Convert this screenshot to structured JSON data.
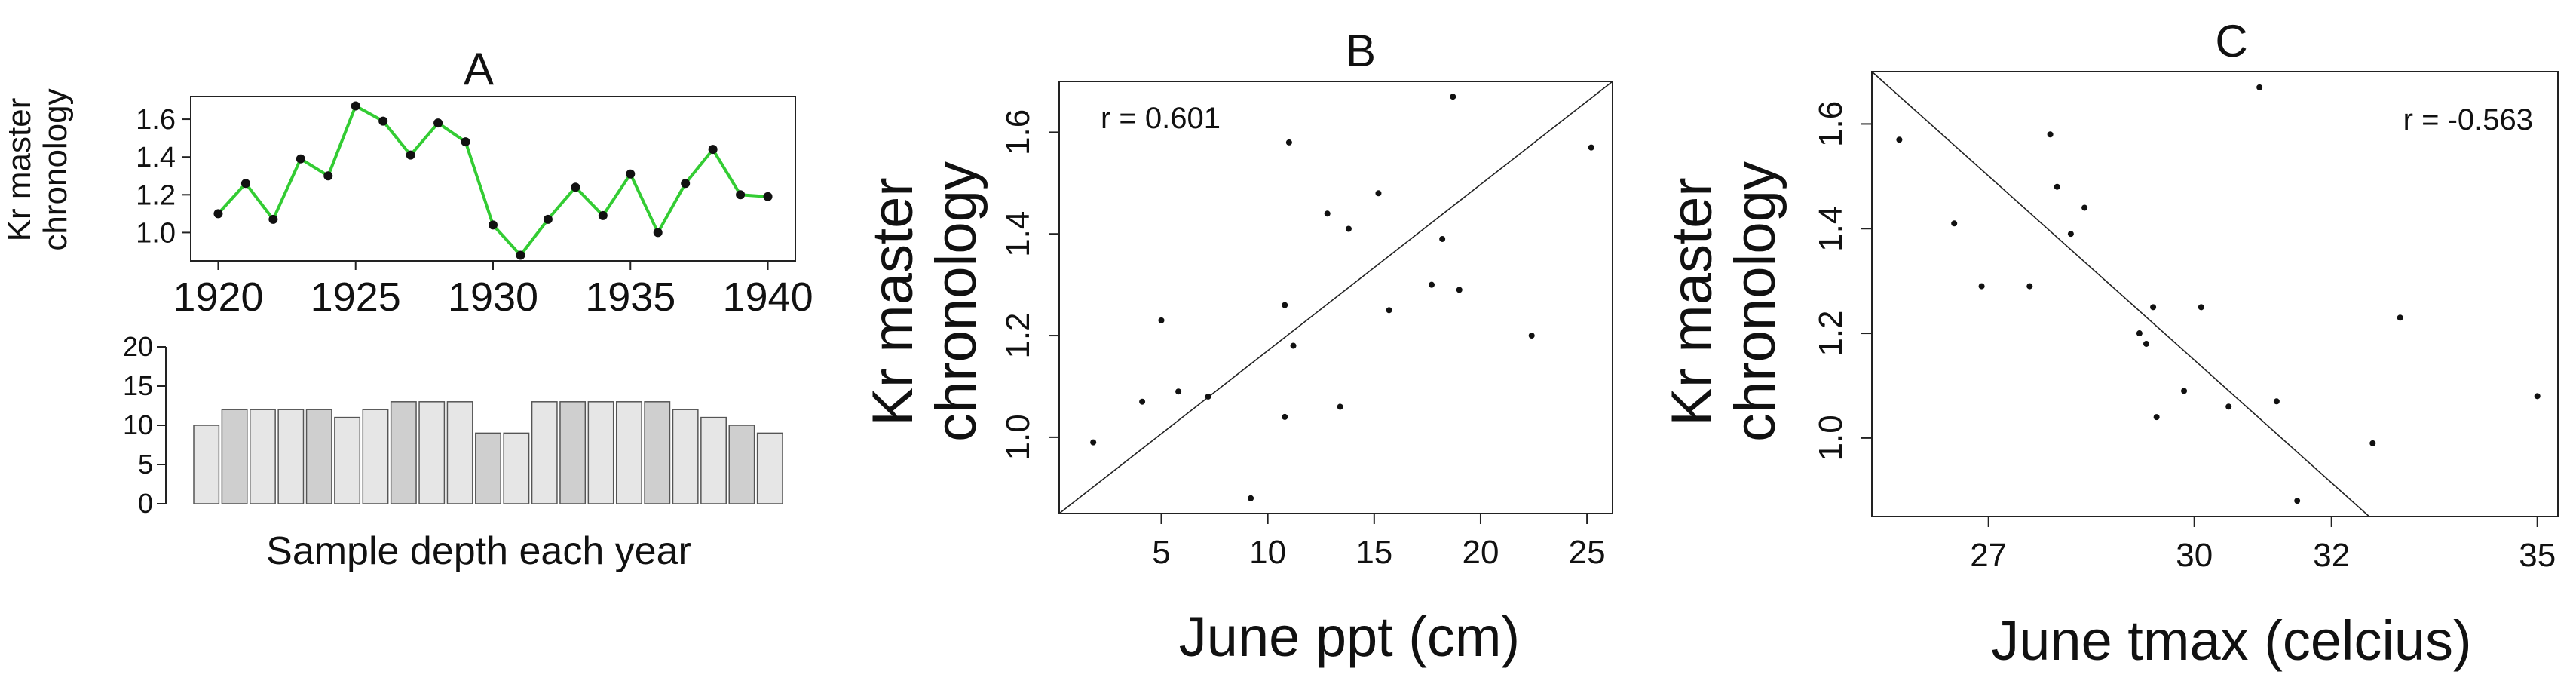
{
  "chart_data": [
    {
      "id": "A-top",
      "type": "line",
      "title": "A",
      "ylabel": "Kr master chronology",
      "xlabel": "",
      "x": [
        1920,
        1921,
        1922,
        1923,
        1924,
        1925,
        1926,
        1927,
        1928,
        1929,
        1930,
        1931,
        1932,
        1933,
        1934,
        1935,
        1936,
        1937,
        1938,
        1939,
        1940
      ],
      "y": [
        1.1,
        1.26,
        1.07,
        1.39,
        1.3,
        1.67,
        1.59,
        1.41,
        1.58,
        1.48,
        1.04,
        0.88,
        1.07,
        1.24,
        1.09,
        1.31,
        1.0,
        1.26,
        1.44,
        1.2,
        1.19
      ],
      "xticks": [
        "1920",
        "1925",
        "1930",
        "1935",
        "1940"
      ],
      "yticks": [
        "1.0",
        "1.2",
        "1.4",
        "1.6"
      ],
      "xlim": [
        1919,
        1941
      ],
      "ylim": [
        0.85,
        1.72
      ],
      "line_color": "#33cc33",
      "marker_color": "#111111"
    },
    {
      "id": "A-bottom",
      "type": "bar",
      "xlabel": "Sample depth each year",
      "categories": [
        "1920",
        "1921",
        "1922",
        "1923",
        "1924",
        "1925",
        "1926",
        "1927",
        "1928",
        "1929",
        "1930",
        "1931",
        "1932",
        "1933",
        "1934",
        "1935",
        "1936",
        "1937",
        "1938",
        "1939",
        "1940"
      ],
      "values": [
        10,
        12,
        12,
        12,
        12,
        11,
        12,
        13,
        13,
        13,
        9,
        9,
        13,
        13,
        13,
        13,
        13,
        12,
        11,
        10,
        9
      ],
      "yticks": [
        "0",
        "5",
        "10",
        "15",
        "20"
      ],
      "ylim": [
        0,
        20
      ],
      "bar_fill_light": "#e6e6e6",
      "bar_fill_dark": "#cfcfcf"
    },
    {
      "id": "B",
      "type": "scatter",
      "title": "B",
      "ylabel": "Kr master chronology",
      "xlabel": "June ppt (cm)",
      "annotation": "r = 0.601",
      "points": [
        [
          1.8,
          0.99
        ],
        [
          4.1,
          1.07
        ],
        [
          5.0,
          1.23
        ],
        [
          5.8,
          1.09
        ],
        [
          7.2,
          1.08
        ],
        [
          9.2,
          0.88
        ],
        [
          10.8,
          1.04
        ],
        [
          10.8,
          1.26
        ],
        [
          11.0,
          1.58
        ],
        [
          11.2,
          1.18
        ],
        [
          12.8,
          1.44
        ],
        [
          13.4,
          1.06
        ],
        [
          13.8,
          1.41
        ],
        [
          15.2,
          1.48
        ],
        [
          15.7,
          1.25
        ],
        [
          17.7,
          1.3
        ],
        [
          18.2,
          1.39
        ],
        [
          18.7,
          1.67
        ],
        [
          19.0,
          1.29
        ],
        [
          22.4,
          1.2
        ],
        [
          25.2,
          1.57
        ]
      ],
      "xticks": [
        "5",
        "10",
        "15",
        "20",
        "25"
      ],
      "yticks": [
        "1.0",
        "1.2",
        "1.4",
        "1.6"
      ],
      "xlim": [
        0.2,
        26.2
      ],
      "ylim": [
        0.85,
        1.7
      ],
      "fit": [
        [
          0.2,
          0.85
        ],
        [
          26.2,
          1.7
        ]
      ]
    },
    {
      "id": "C",
      "type": "scatter",
      "title": "C",
      "ylabel": "Kr master chronology",
      "xlabel": "June tmax (celcius)",
      "annotation": "r = -0.563",
      "points": [
        [
          25.7,
          1.57
        ],
        [
          26.5,
          1.41
        ],
        [
          26.9,
          1.29
        ],
        [
          27.6,
          1.29
        ],
        [
          27.9,
          1.58
        ],
        [
          28.0,
          1.48
        ],
        [
          28.2,
          1.39
        ],
        [
          28.4,
          1.44
        ],
        [
          29.2,
          1.2
        ],
        [
          29.3,
          1.18
        ],
        [
          29.4,
          1.25
        ],
        [
          29.45,
          1.04
        ],
        [
          29.85,
          1.09
        ],
        [
          30.1,
          1.25
        ],
        [
          30.5,
          1.06
        ],
        [
          30.95,
          1.67
        ],
        [
          31.2,
          1.07
        ],
        [
          31.5,
          0.88
        ],
        [
          32.6,
          0.99
        ],
        [
          33.0,
          1.23
        ],
        [
          35.0,
          1.08
        ]
      ],
      "xticks": [
        "27",
        "30",
        "32",
        "35"
      ],
      "yticks": [
        "1.0",
        "1.2",
        "1.4",
        "1.6"
      ],
      "xlim": [
        25.3,
        35.3
      ],
      "ylim": [
        0.85,
        1.7
      ],
      "fit": [
        [
          25.3,
          1.7
        ],
        [
          32.55,
          0.85
        ]
      ]
    }
  ]
}
